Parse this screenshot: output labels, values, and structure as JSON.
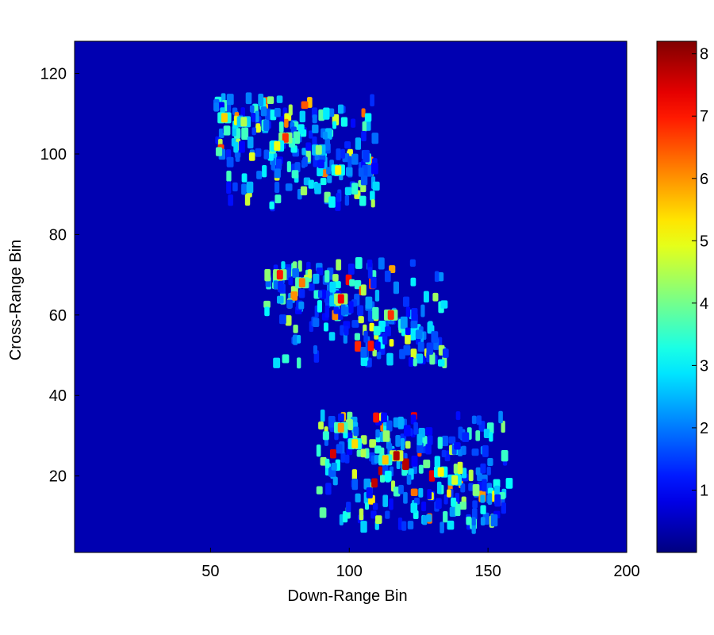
{
  "chart_data": {
    "type": "heatmap",
    "title": "",
    "xlabel": "Down-Range Bin",
    "ylabel": "Cross-Range Bin",
    "xlim": [
      1,
      200
    ],
    "ylim": [
      1,
      128
    ],
    "x_ticks": [
      50,
      100,
      150,
      200
    ],
    "y_ticks": [
      20,
      40,
      60,
      80,
      100,
      120
    ],
    "colormap": "jet",
    "colorbar": {
      "range": [
        0,
        8.2
      ],
      "ticks": [
        1,
        2,
        3,
        4,
        5,
        6,
        7,
        8
      ],
      "tick_labels": [
        "1",
        "2",
        "3",
        "4",
        "5",
        "6",
        "7",
        "8"
      ]
    },
    "background_value": 0.4,
    "scatterer_clusters": [
      {
        "name": "top",
        "x_range": [
          52,
          112
        ],
        "y_range": [
          87,
          114
        ],
        "peak": 6.8
      },
      {
        "name": "middle",
        "x_range": [
          70,
          135
        ],
        "y_range": [
          48,
          73
        ],
        "peak": 7.2
      },
      {
        "name": "bottom",
        "x_range": [
          88,
          158
        ],
        "y_range": [
          7,
          35
        ],
        "peak": 7.8
      }
    ],
    "peak_points": [
      {
        "x": 55,
        "y": 109,
        "v": 5.5
      },
      {
        "x": 62,
        "y": 108,
        "v": 4.5
      },
      {
        "x": 77,
        "y": 104,
        "v": 6.8
      },
      {
        "x": 74,
        "y": 102,
        "v": 5.0
      },
      {
        "x": 96,
        "y": 96,
        "v": 5.2
      },
      {
        "x": 89,
        "y": 101,
        "v": 4.2
      },
      {
        "x": 75,
        "y": 70,
        "v": 7.0
      },
      {
        "x": 83,
        "y": 68,
        "v": 6.2
      },
      {
        "x": 97,
        "y": 64,
        "v": 7.2
      },
      {
        "x": 115,
        "y": 60,
        "v": 6.8
      },
      {
        "x": 97,
        "y": 32,
        "v": 6.0
      },
      {
        "x": 102,
        "y": 28,
        "v": 5.4
      },
      {
        "x": 117,
        "y": 25,
        "v": 7.8
      },
      {
        "x": 113,
        "y": 24,
        "v": 5.6
      },
      {
        "x": 133,
        "y": 21,
        "v": 5.2
      },
      {
        "x": 138,
        "y": 19,
        "v": 4.8
      }
    ]
  }
}
